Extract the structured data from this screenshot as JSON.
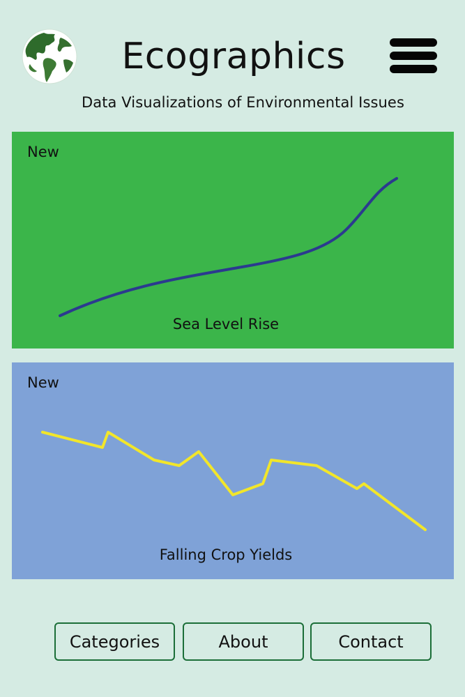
{
  "header": {
    "title": "Ecographics",
    "subtitle": "Data Visualizations of Environmental Issues",
    "logo_icon": "globe-icon",
    "menu_icon": "hamburger-menu-icon"
  },
  "cards": [
    {
      "badge": "New",
      "title": "Sea Level Rise",
      "background": "#3bb54a",
      "line_color": "#2b3a8f"
    },
    {
      "badge": "New",
      "title": "Falling Crop Yields",
      "background": "#7fa2d7",
      "line_color": "#f2e62a"
    }
  ],
  "nav": {
    "categories_label": "Categories",
    "about_label": "About",
    "contact_label": "Contact"
  },
  "colors": {
    "page_background": "#d5ebe3",
    "button_border": "#1b6e38",
    "globe_land": "#2e6b2b",
    "globe_ocean": "#ffffff"
  }
}
